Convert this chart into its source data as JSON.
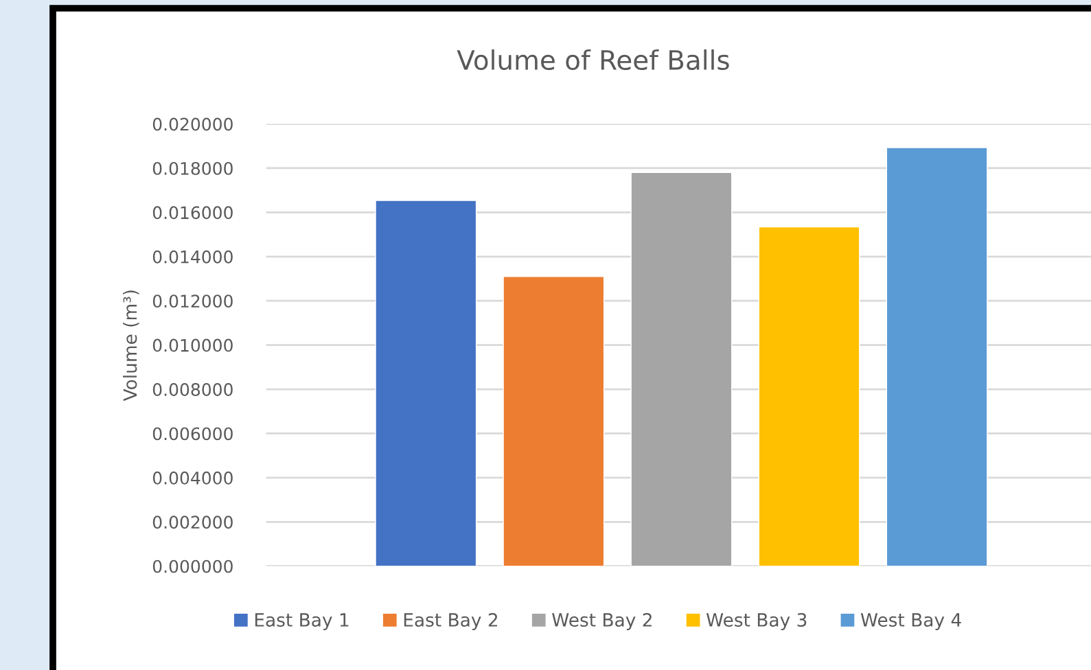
{
  "chart_data": {
    "type": "bar",
    "title": "Volume of Reef Balls",
    "ylabel": "Volume (m³)",
    "categories": [
      null
    ],
    "series": [
      {
        "name": "East Bay 1",
        "color": "#4472c4",
        "values": [
          0.01654
        ]
      },
      {
        "name": "East Bay 2",
        "color": "#ed7d31",
        "values": [
          0.0131
        ]
      },
      {
        "name": "West Bay 2",
        "color": "#a5a5a5",
        "values": [
          0.0178
        ]
      },
      {
        "name": "West Bay 3",
        "color": "#ffc000",
        "values": [
          0.01534
        ]
      },
      {
        "name": "West Bay 4",
        "color": "#5b9bd5",
        "values": [
          0.01893
        ]
      }
    ],
    "ylim": [
      0,
      0.02
    ],
    "yticks": [
      {
        "value": 0,
        "label": "0.000000"
      },
      {
        "value": 0.002,
        "label": "0.002000"
      },
      {
        "value": 0.004,
        "label": "0.004000"
      },
      {
        "value": 0.006,
        "label": "0.006000"
      },
      {
        "value": 0.008,
        "label": "0.008000"
      },
      {
        "value": 0.01,
        "label": "0.010000"
      },
      {
        "value": 0.012,
        "label": "0.012000"
      },
      {
        "value": 0.014,
        "label": "0.014000"
      },
      {
        "value": 0.016,
        "label": "0.016000"
      },
      {
        "value": 0.018,
        "label": "0.018000"
      },
      {
        "value": 0.02,
        "label": "0.020000"
      }
    ],
    "grid": "y",
    "legend": "bottom",
    "tick_labels": "y"
  }
}
